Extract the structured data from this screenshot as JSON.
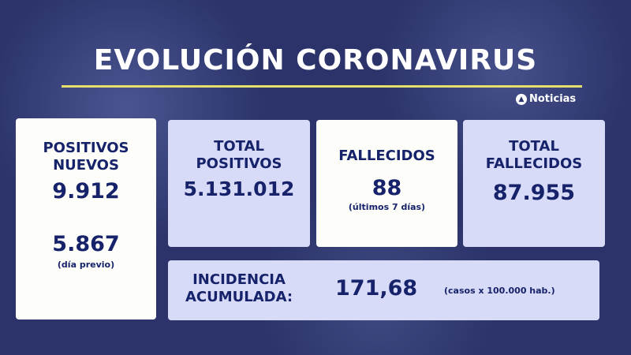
{
  "title": "EVOLUCIÓN CORONAVIRUS",
  "logo": "Noticias",
  "cards": {
    "positivos_nuevos": {
      "label1": "POSITIVOS",
      "label2": "NUEVOS",
      "value": "9.912",
      "prev_value": "5.867",
      "prev_note": "(día previo)"
    },
    "total_positivos": {
      "label1": "TOTAL",
      "label2": "POSITIVOS",
      "value": "5.131.012"
    },
    "fallecidos": {
      "label": "FALLECIDOS",
      "value": "88",
      "note": "(últimos 7 días)"
    },
    "total_fallecidos": {
      "label1": "TOTAL",
      "label2": "FALLECIDOS",
      "value": "87.955"
    },
    "incidencia": {
      "label1": "INCIDENCIA",
      "label2": "ACUMULADA:",
      "value": "171,68",
      "note": "(casos x 100.000 hab.)"
    }
  },
  "colors": {
    "background": "#2b336a",
    "text": "#16226a",
    "accent_line": "#e6df6b",
    "card_light": "#d8dbf7",
    "card_white": "#fdfdfa"
  }
}
